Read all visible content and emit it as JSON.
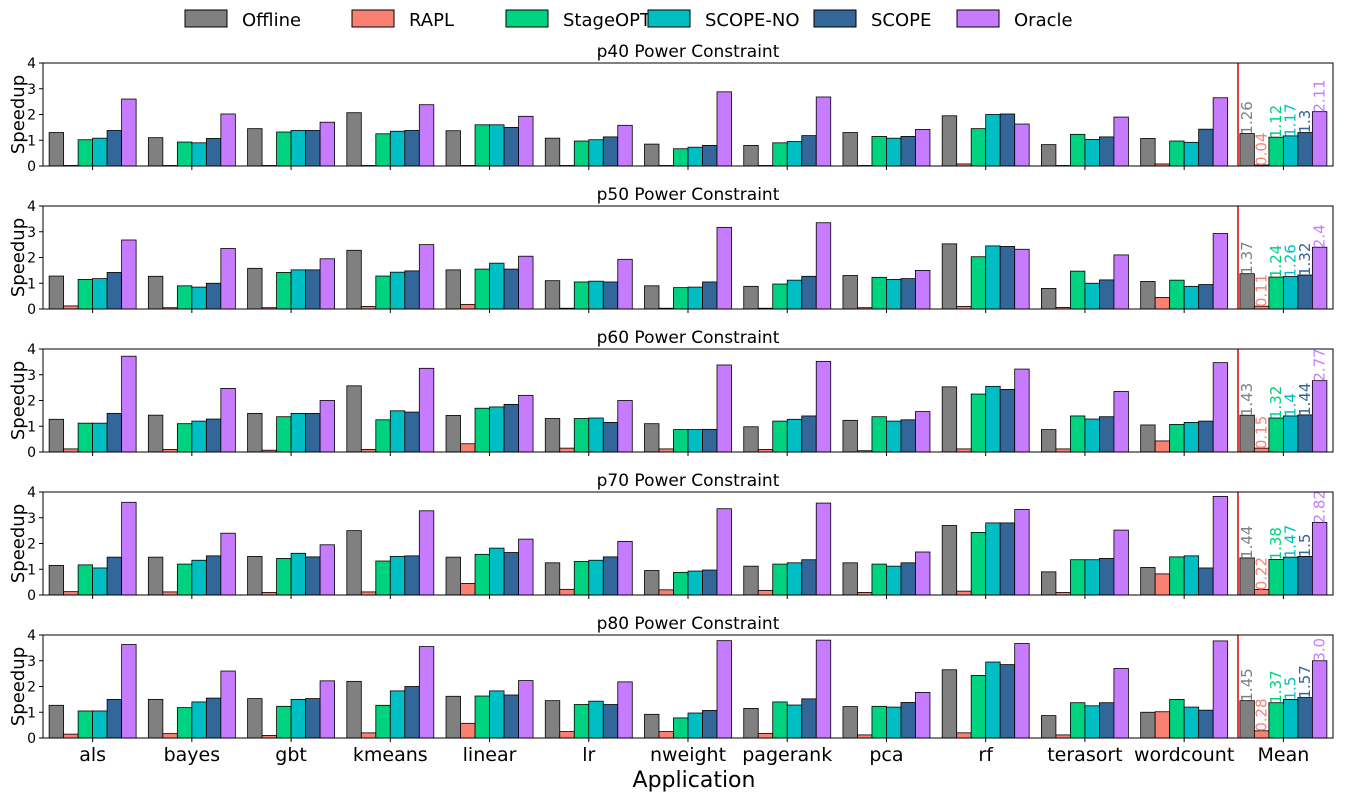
{
  "chart_data": {
    "type": "bar",
    "legend": {
      "placement": "top",
      "entries": [
        "Offline",
        "RAPL",
        "StageOPT",
        "SCOPE-NO",
        "SCOPE",
        "Oracle"
      ]
    },
    "colors": {
      "Offline": "#808080",
      "RAPL": "#fa8072",
      "StageOPT": "#00d37f",
      "SCOPE-NO": "#00bfc4",
      "SCOPE": "#336699",
      "Oracle": "#c77cff",
      "separator": "#dd0000"
    },
    "xlabel": "Application",
    "ylabel": "Speedup",
    "ylim": [
      0,
      4
    ],
    "yticks": [
      "0",
      "1",
      "2",
      "3",
      "4"
    ],
    "categories": [
      "als",
      "bayes",
      "gbt",
      "kmeans",
      "linear",
      "lr",
      "nweight",
      "pagerank",
      "pca",
      "rf",
      "terasort",
      "wordcount",
      "Mean"
    ],
    "panels": [
      {
        "title": "p40 Power Constraint",
        "series": [
          {
            "name": "Offline",
            "values": [
              1.3,
              1.1,
              1.45,
              2.07,
              1.37,
              1.08,
              0.85,
              0.8,
              1.3,
              1.95,
              0.83,
              1.07,
              1.26
            ]
          },
          {
            "name": "RAPL",
            "values": [
              0.02,
              0.02,
              0.02,
              0.02,
              0.02,
              0.02,
              0.02,
              0.02,
              0.02,
              0.08,
              0.02,
              0.08,
              0.04
            ]
          },
          {
            "name": "StageOPT",
            "values": [
              1.02,
              0.93,
              1.32,
              1.25,
              1.6,
              0.97,
              0.67,
              0.9,
              1.15,
              1.45,
              1.23,
              0.97,
              1.12
            ]
          },
          {
            "name": "SCOPE-NO",
            "values": [
              1.08,
              0.9,
              1.38,
              1.35,
              1.6,
              1.02,
              0.73,
              0.95,
              1.08,
              2.0,
              1.03,
              0.92,
              1.17
            ]
          },
          {
            "name": "SCOPE",
            "values": [
              1.38,
              1.07,
              1.38,
              1.38,
              1.5,
              1.13,
              0.8,
              1.18,
              1.15,
              2.02,
              1.13,
              1.43,
              1.3
            ]
          },
          {
            "name": "Oracle",
            "values": [
              2.6,
              2.02,
              1.7,
              2.38,
              1.93,
              1.58,
              2.88,
              2.68,
              1.42,
              1.63,
              1.9,
              2.65,
              2.11
            ]
          }
        ],
        "mean_labels": [
          "1.26",
          "0.04",
          "1.12",
          "1.17",
          "1.3",
          "2.11"
        ]
      },
      {
        "title": "p50 Power Constraint",
        "series": [
          {
            "name": "Offline",
            "values": [
              1.28,
              1.27,
              1.58,
              2.28,
              1.52,
              1.1,
              0.9,
              0.88,
              1.3,
              2.53,
              0.8,
              1.07,
              1.37
            ]
          },
          {
            "name": "RAPL",
            "values": [
              0.12,
              0.05,
              0.05,
              0.1,
              0.18,
              0.03,
              0.03,
              0.03,
              0.05,
              0.1,
              0.06,
              0.45,
              0.11
            ]
          },
          {
            "name": "StageOPT",
            "values": [
              1.15,
              0.9,
              1.42,
              1.28,
              1.55,
              1.05,
              0.83,
              0.97,
              1.23,
              2.03,
              1.47,
              1.12,
              1.24
            ]
          },
          {
            "name": "SCOPE-NO",
            "values": [
              1.18,
              0.85,
              1.52,
              1.43,
              1.78,
              1.08,
              0.85,
              1.12,
              1.15,
              2.45,
              1.0,
              0.88,
              1.26
            ]
          },
          {
            "name": "SCOPE",
            "values": [
              1.42,
              1.0,
              1.52,
              1.48,
              1.55,
              1.05,
              1.05,
              1.27,
              1.18,
              2.43,
              1.13,
              0.95,
              1.32
            ]
          },
          {
            "name": "Oracle",
            "values": [
              2.68,
              2.35,
              1.95,
              2.5,
              2.05,
              1.93,
              3.17,
              3.35,
              1.5,
              2.32,
              2.1,
              2.93,
              2.4
            ]
          }
        ],
        "mean_labels": [
          "1.37",
          "0.11",
          "1.24",
          "1.26",
          "1.32",
          "2.4"
        ]
      },
      {
        "title": "p60 Power Constraint",
        "series": [
          {
            "name": "Offline",
            "values": [
              1.27,
              1.43,
              1.5,
              2.57,
              1.42,
              1.3,
              1.1,
              0.98,
              1.23,
              2.53,
              0.87,
              1.05,
              1.43
            ]
          },
          {
            "name": "RAPL",
            "values": [
              0.12,
              0.1,
              0.07,
              0.1,
              0.32,
              0.15,
              0.12,
              0.1,
              0.05,
              0.12,
              0.12,
              0.43,
              0.15
            ]
          },
          {
            "name": "StageOPT",
            "values": [
              1.12,
              1.1,
              1.37,
              1.25,
              1.7,
              1.3,
              0.87,
              1.2,
              1.37,
              2.25,
              1.4,
              1.07,
              1.32
            ]
          },
          {
            "name": "SCOPE-NO",
            "values": [
              1.12,
              1.2,
              1.5,
              1.6,
              1.75,
              1.32,
              0.87,
              1.27,
              1.2,
              2.55,
              1.28,
              1.15,
              1.4
            ]
          },
          {
            "name": "SCOPE",
            "values": [
              1.5,
              1.28,
              1.5,
              1.55,
              1.85,
              1.15,
              0.88,
              1.4,
              1.25,
              2.43,
              1.37,
              1.2,
              1.44
            ]
          },
          {
            "name": "Oracle",
            "values": [
              3.72,
              2.47,
              2.0,
              3.25,
              2.2,
              2.0,
              3.38,
              3.52,
              1.57,
              3.22,
              2.35,
              3.47,
              2.77
            ]
          }
        ],
        "mean_labels": [
          "1.43",
          "0.15",
          "1.32",
          "1.4",
          "1.44",
          "2.77"
        ]
      },
      {
        "title": "p70 Power Constraint",
        "series": [
          {
            "name": "Offline",
            "values": [
              1.15,
              1.47,
              1.5,
              2.5,
              1.47,
              1.25,
              0.95,
              1.12,
              1.25,
              2.7,
              0.9,
              1.07,
              1.44
            ]
          },
          {
            "name": "RAPL",
            "values": [
              0.13,
              0.12,
              0.1,
              0.12,
              0.45,
              0.22,
              0.2,
              0.18,
              0.1,
              0.15,
              0.1,
              0.82,
              0.22
            ]
          },
          {
            "name": "StageOPT",
            "values": [
              1.17,
              1.2,
              1.42,
              1.32,
              1.58,
              1.3,
              0.88,
              1.2,
              1.2,
              2.43,
              1.37,
              1.48,
              1.38
            ]
          },
          {
            "name": "SCOPE-NO",
            "values": [
              1.05,
              1.35,
              1.62,
              1.5,
              1.82,
              1.35,
              0.93,
              1.25,
              1.12,
              2.8,
              1.37,
              1.52,
              1.47
            ]
          },
          {
            "name": "SCOPE",
            "values": [
              1.47,
              1.52,
              1.48,
              1.52,
              1.65,
              1.48,
              0.97,
              1.37,
              1.25,
              2.8,
              1.42,
              1.05,
              1.5
            ]
          },
          {
            "name": "Oracle",
            "values": [
              3.6,
              2.4,
              1.95,
              3.27,
              2.17,
              2.08,
              3.35,
              3.57,
              1.67,
              3.32,
              2.52,
              3.83,
              2.82
            ]
          }
        ],
        "mean_labels": [
          "1.44",
          "0.22",
          "1.38",
          "1.47",
          "1.5",
          "2.82"
        ]
      },
      {
        "title": "p80 Power Constraint",
        "series": [
          {
            "name": "Offline",
            "values": [
              1.27,
              1.5,
              1.53,
              2.2,
              1.62,
              1.45,
              0.92,
              1.15,
              1.22,
              2.65,
              0.87,
              1.0,
              1.45
            ]
          },
          {
            "name": "RAPL",
            "values": [
              0.15,
              0.17,
              0.1,
              0.2,
              0.57,
              0.25,
              0.25,
              0.18,
              0.12,
              0.2,
              0.12,
              1.02,
              0.28
            ]
          },
          {
            "name": "StageOPT",
            "values": [
              1.05,
              1.18,
              1.23,
              1.27,
              1.63,
              1.3,
              0.78,
              1.4,
              1.23,
              2.43,
              1.37,
              1.5,
              1.37
            ]
          },
          {
            "name": "SCOPE-NO",
            "values": [
              1.05,
              1.4,
              1.5,
              1.83,
              1.83,
              1.43,
              0.97,
              1.28,
              1.2,
              2.95,
              1.25,
              1.2,
              1.5
            ]
          },
          {
            "name": "SCOPE",
            "values": [
              1.5,
              1.55,
              1.53,
              2.0,
              1.67,
              1.3,
              1.07,
              1.52,
              1.38,
              2.85,
              1.37,
              1.08,
              1.57
            ]
          },
          {
            "name": "Oracle",
            "values": [
              3.63,
              2.6,
              2.22,
              3.55,
              2.23,
              2.18,
              3.78,
              3.8,
              1.77,
              3.67,
              2.7,
              3.77,
              3.0
            ]
          }
        ],
        "mean_labels": [
          "1.45",
          "0.28",
          "1.37",
          "1.5",
          "1.57",
          "3.0"
        ]
      }
    ]
  }
}
